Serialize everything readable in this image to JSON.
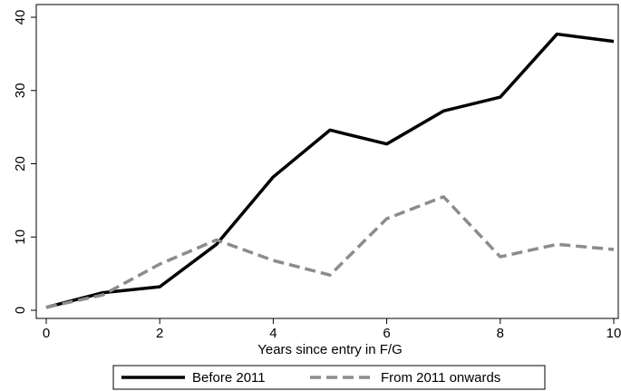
{
  "chart_data": {
    "type": "line",
    "title": "",
    "xlabel": "Years since entry in F/G",
    "ylabel": "",
    "xlim": [
      0,
      10
    ],
    "ylim": [
      0,
      40
    ],
    "xticks": [
      0,
      2,
      4,
      6,
      8,
      10
    ],
    "yticks": [
      0,
      10,
      20,
      30,
      40
    ],
    "grid": false,
    "legend_position": "bottom",
    "x": [
      0,
      1,
      2,
      3,
      4,
      5,
      6,
      7,
      8,
      9,
      10
    ],
    "series": [
      {
        "name": "Before 2011",
        "values": [
          0.4,
          2.4,
          3.2,
          9.0,
          18.2,
          24.6,
          22.7,
          27.2,
          29.1,
          37.7,
          36.7
        ],
        "color": "#000000",
        "style": "solid"
      },
      {
        "name": "From 2011 onwards",
        "values": [
          0.4,
          2.1,
          6.3,
          9.6,
          6.8,
          4.8,
          12.5,
          15.5,
          7.3,
          9.0,
          8.3
        ],
        "color": "#8c8c8c",
        "style": "dashed"
      }
    ]
  }
}
